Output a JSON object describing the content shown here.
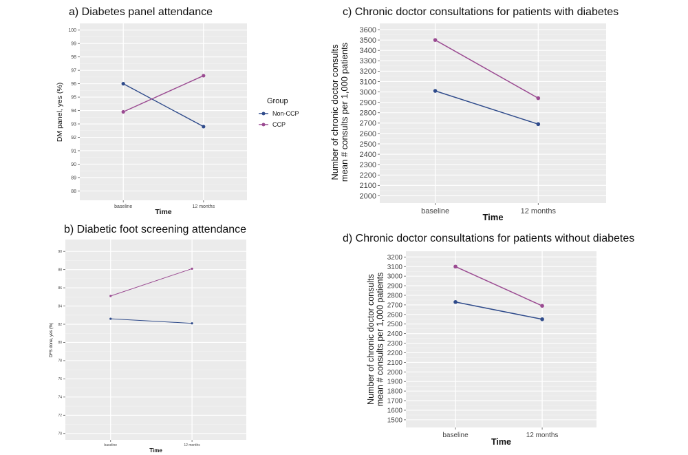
{
  "legend": {
    "title": "Group",
    "entries": [
      {
        "name": "Non-CCP",
        "color": "#2F4B8B"
      },
      {
        "name": "CCP",
        "color": "#9A4A91"
      }
    ]
  },
  "chart_data": [
    {
      "id": "a",
      "type": "line",
      "title": "a) Diabetes panel attendance",
      "xlabel": "Time",
      "ylabel": "DM panel, yes (%)",
      "categories": [
        "baseline",
        "12 months"
      ],
      "ylim": [
        87.3,
        100.5
      ],
      "yticks": [
        88,
        89,
        90,
        91,
        92,
        93,
        94,
        95,
        96,
        97,
        98,
        99,
        100
      ],
      "series": [
        {
          "name": "Non-CCP",
          "color": "#2F4B8B",
          "values": [
            96.0,
            92.8
          ]
        },
        {
          "name": "CCP",
          "color": "#9A4A91",
          "values": [
            93.9,
            96.6
          ]
        }
      ]
    },
    {
      "id": "b",
      "type": "line",
      "title": "b) Diabetic foot screening attendance",
      "xlabel": "Time",
      "ylabel": "DFS done, yes (%)",
      "categories": [
        "baseline",
        "12 months"
      ],
      "ylim": [
        69.3,
        91.3
      ],
      "yticks": [
        70,
        72,
        74,
        76,
        78,
        80,
        82,
        84,
        86,
        88,
        90
      ],
      "series": [
        {
          "name": "Non-CCP",
          "color": "#2F4B8B",
          "values": [
            82.6,
            82.1
          ]
        },
        {
          "name": "CCP",
          "color": "#9A4A91",
          "values": [
            85.1,
            88.1
          ]
        }
      ]
    },
    {
      "id": "c",
      "type": "line",
      "title": "c) Chronic doctor consultations for patients with diabetes",
      "xlabel": "Time",
      "ylabel": "Number of chronic doctor consults",
      "ylabel2": "mean # consults per 1,000 patients",
      "categories": [
        "baseline",
        "12 months"
      ],
      "ylim": [
        1930,
        3660
      ],
      "yticks": [
        2000,
        2100,
        2200,
        2300,
        2400,
        2500,
        2600,
        2700,
        2800,
        2900,
        3000,
        3100,
        3200,
        3300,
        3400,
        3500,
        3600
      ],
      "series": [
        {
          "name": "Non-CCP",
          "color": "#2F4B8B",
          "values": [
            3010,
            2690
          ]
        },
        {
          "name": "CCP",
          "color": "#9A4A91",
          "values": [
            3500,
            2940
          ]
        }
      ]
    },
    {
      "id": "d",
      "type": "line",
      "title": "d) Chronic doctor consultations for patients without diabetes",
      "xlabel": "Time",
      "ylabel": "Number of chronic doctor consults",
      "ylabel2": "mean # consults per 1,000 patients",
      "categories": [
        "baseline",
        "12 months"
      ],
      "ylim": [
        1420,
        3260
      ],
      "yticks": [
        1500,
        1600,
        1700,
        1800,
        1900,
        2000,
        2100,
        2200,
        2300,
        2400,
        2500,
        2600,
        2700,
        2800,
        2900,
        3000,
        3100,
        3200
      ],
      "series": [
        {
          "name": "Non-CCP",
          "color": "#2F4B8B",
          "values": [
            2730,
            2550
          ]
        },
        {
          "name": "CCP",
          "color": "#9A4A91",
          "values": [
            3100,
            2690
          ]
        }
      ]
    }
  ]
}
